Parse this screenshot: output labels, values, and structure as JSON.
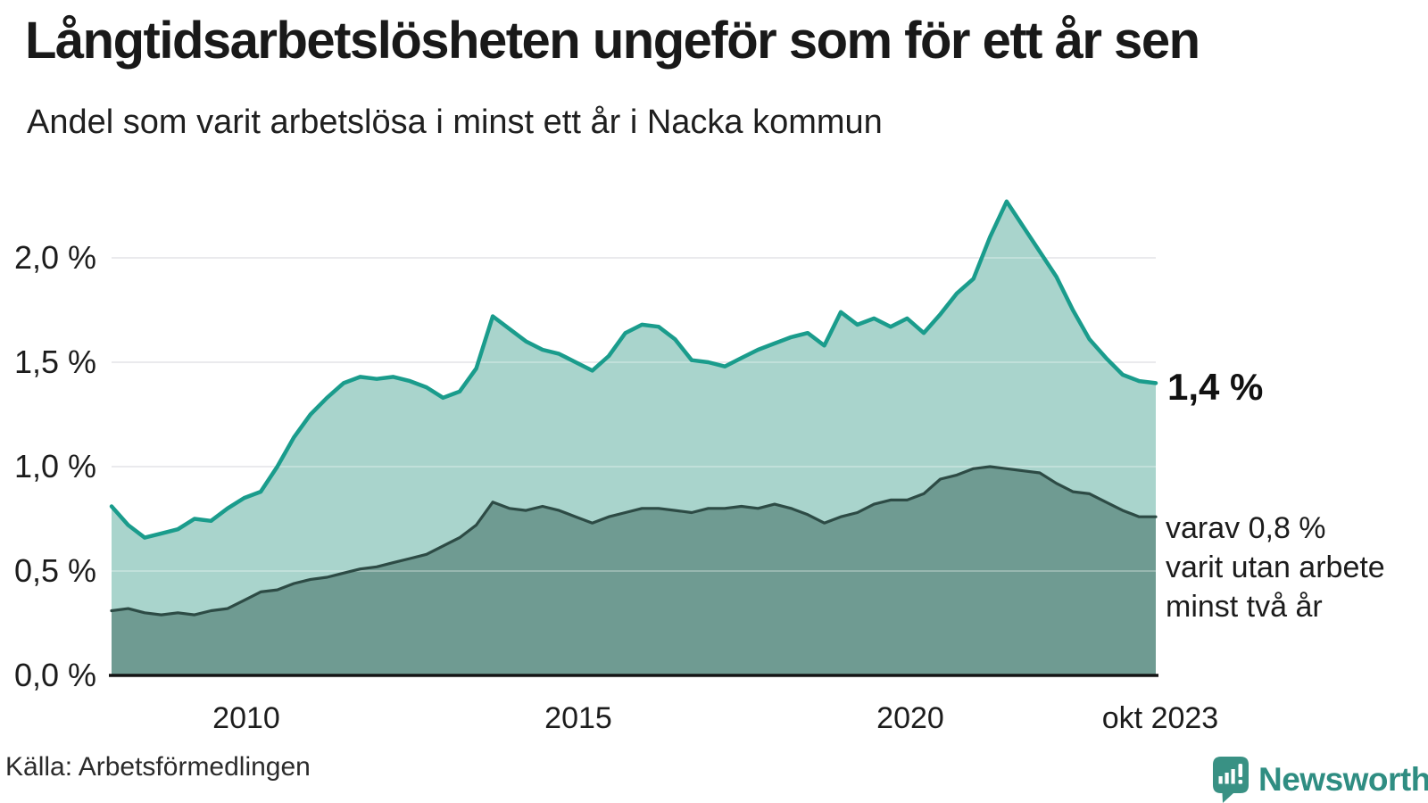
{
  "header": {
    "title": "Långtidsarbetslösheten ungeför som för ett år sen",
    "subtitle": "Andel som varit arbetslösa i minst ett år i Nacka kommun"
  },
  "chart": {
    "y_ticks": [
      "2,0 %",
      "1,5 %",
      "1,0 %",
      "0,5 %",
      "0,0 %"
    ],
    "x_ticks": [
      "2010",
      "2015",
      "2020",
      "okt 2023"
    ],
    "end_label": "1,4 %",
    "annotation_lines": [
      "varav 0,8 %",
      "varit utan arbete",
      "minst två år"
    ]
  },
  "footer": {
    "source": "Källa: Arbetsförmedlingen",
    "brand": "Newsworthy"
  },
  "colors": {
    "line_total": "#1a9c8c",
    "fill_total": "#a9d4cc",
    "line_two_years": "#2d4b45",
    "fill_two_years": "#6f9b92",
    "gridline": "#e2e2e7",
    "grid_over_fill": "rgba(255,255,255,0.28)",
    "axis": "#141414",
    "text": "#1a1a1a",
    "brand_teal": "#2f8d82",
    "logo_teal": "#399184"
  },
  "chart_data": {
    "type": "area",
    "title": "Långtidsarbetslösheten ungeför som för ett år sen",
    "subtitle": "Andel som varit arbetslösa i minst ett år i Nacka kommun",
    "source": "Arbetsförmedlingen",
    "y_unit": "%",
    "decimal_style": "comma",
    "ylim": [
      0,
      2.35
    ],
    "y_tick_values": [
      0.0,
      0.5,
      1.0,
      1.5,
      2.0
    ],
    "x_tick_values": [
      2010,
      2015,
      2020,
      2023.79
    ],
    "x_tick_labels": [
      "2010",
      "2015",
      "2020",
      "okt 2023"
    ],
    "grid": "horizontal",
    "x": [
      2008.0,
      2008.25,
      2008.5,
      2008.75,
      2009.0,
      2009.25,
      2009.5,
      2009.75,
      2010.0,
      2010.25,
      2010.5,
      2010.75,
      2011.0,
      2011.25,
      2011.5,
      2011.75,
      2012.0,
      2012.25,
      2012.5,
      2012.75,
      2013.0,
      2013.25,
      2013.5,
      2013.75,
      2014.0,
      2014.25,
      2014.5,
      2014.75,
      2015.0,
      2015.25,
      2015.5,
      2015.75,
      2016.0,
      2016.25,
      2016.5,
      2016.75,
      2017.0,
      2017.25,
      2017.5,
      2017.75,
      2018.0,
      2018.25,
      2018.5,
      2018.75,
      2019.0,
      2019.25,
      2019.5,
      2019.75,
      2020.0,
      2020.25,
      2020.5,
      2020.75,
      2021.0,
      2021.25,
      2021.5,
      2021.75,
      2022.0,
      2022.25,
      2022.5,
      2022.75,
      2023.0,
      2023.25,
      2023.5,
      2023.75
    ],
    "series": [
      {
        "name": "Andel arbetslösa minst ett år",
        "end_value_label": "1,4 %",
        "line_color": "#1a9c8c",
        "fill_color": "#a9d4cc",
        "values": [
          0.81,
          0.72,
          0.66,
          0.68,
          0.7,
          0.75,
          0.74,
          0.8,
          0.85,
          0.88,
          1.0,
          1.14,
          1.25,
          1.33,
          1.4,
          1.43,
          1.42,
          1.43,
          1.41,
          1.38,
          1.33,
          1.36,
          1.47,
          1.72,
          1.66,
          1.6,
          1.56,
          1.54,
          1.5,
          1.46,
          1.53,
          1.64,
          1.68,
          1.67,
          1.61,
          1.51,
          1.5,
          1.48,
          1.52,
          1.56,
          1.59,
          1.62,
          1.64,
          1.58,
          1.74,
          1.68,
          1.71,
          1.67,
          1.71,
          1.64,
          1.73,
          1.83,
          1.9,
          2.1,
          2.27,
          2.15,
          2.03,
          1.91,
          1.75,
          1.61,
          1.52,
          1.44,
          1.41,
          1.4
        ]
      },
      {
        "name": "varav utan arbete minst två år",
        "end_value_label": "0,8 %",
        "line_color": "#2d4b45",
        "fill_color": "#6f9b92",
        "values": [
          0.31,
          0.32,
          0.3,
          0.29,
          0.3,
          0.29,
          0.31,
          0.32,
          0.36,
          0.4,
          0.41,
          0.44,
          0.46,
          0.47,
          0.49,
          0.51,
          0.52,
          0.54,
          0.56,
          0.58,
          0.62,
          0.66,
          0.72,
          0.83,
          0.8,
          0.79,
          0.81,
          0.79,
          0.76,
          0.73,
          0.76,
          0.78,
          0.8,
          0.8,
          0.79,
          0.78,
          0.8,
          0.8,
          0.81,
          0.8,
          0.82,
          0.8,
          0.77,
          0.73,
          0.76,
          0.78,
          0.82,
          0.84,
          0.84,
          0.87,
          0.94,
          0.96,
          0.99,
          1.0,
          0.99,
          0.98,
          0.97,
          0.92,
          0.88,
          0.87,
          0.83,
          0.79,
          0.76,
          0.76
        ]
      }
    ]
  }
}
